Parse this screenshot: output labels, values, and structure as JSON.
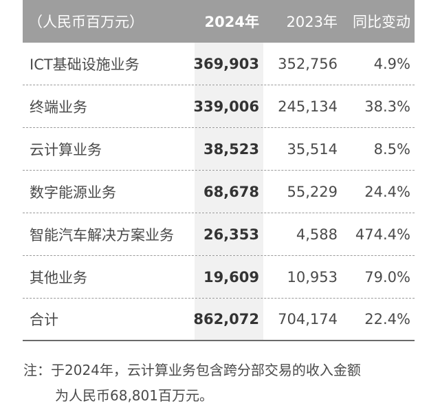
{
  "header": {
    "unit": "（人民币百万元）",
    "col_2024": "2024年",
    "col_2023": "2023年",
    "col_yoy": "同比变动"
  },
  "rows": [
    {
      "name": "ICT基础设施业务",
      "v2024": "369,903",
      "v2023": "352,756",
      "yoy": "4.9%"
    },
    {
      "name": "终端业务",
      "v2024": "339,006",
      "v2023": "245,134",
      "yoy": "38.3%"
    },
    {
      "name": "云计算业务",
      "v2024": "38,523",
      "v2023": "35,514",
      "yoy": "8.5%"
    },
    {
      "name": "数字能源业务",
      "v2024": "68,678",
      "v2023": "55,229",
      "yoy": "24.4%"
    },
    {
      "name": "智能汽车解决方案业务",
      "v2024": "26,353",
      "v2023": "4,588",
      "yoy": "474.4%"
    },
    {
      "name": "其他业务",
      "v2024": "19,609",
      "v2023": "10,953",
      "yoy": "79.0%"
    },
    {
      "name": "合计",
      "v2024": "862,072",
      "v2023": "704,174",
      "yoy": "22.4%"
    }
  ],
  "note": {
    "line1": "注：于2024年，云计算业务包含跨分部交易的收入金额",
    "line2": "为人民币68,801百万元。"
  },
  "colors": {
    "header_bg": "#9e9e9e",
    "highlight_col_bg": "#f1f1f1",
    "text": "#4a4a4a"
  }
}
